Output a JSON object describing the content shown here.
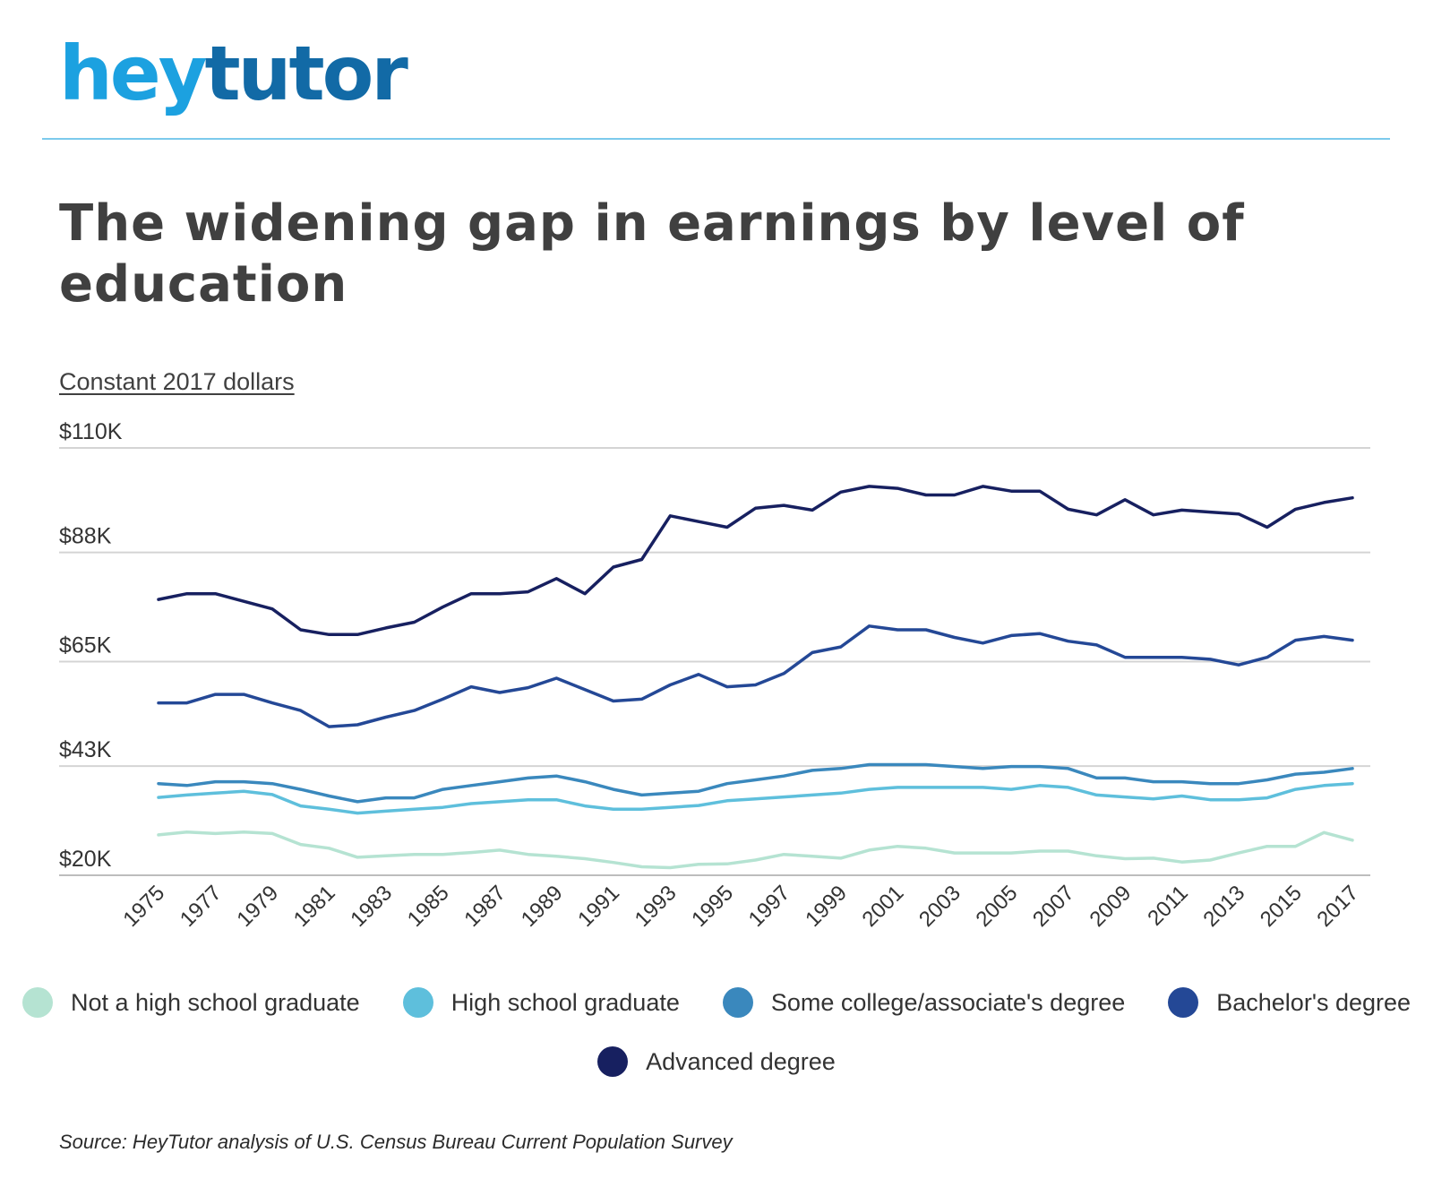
{
  "brand": {
    "part1": "hey",
    "part2": "tutor"
  },
  "colors": {
    "logo_primary": "#1ca1e0",
    "logo_secondary": "#126aa6",
    "divider": "#7ccaec",
    "gridline": "#d4d4d4"
  },
  "source": "Source: HeyTutor analysis of U.S. Census Bureau Current Population Survey",
  "chart_data": {
    "type": "line",
    "title": "The widening gap in earnings by level of education",
    "subtitle": "Constant 2017 dollars",
    "xlabel": "",
    "ylabel": "",
    "ylim": [
      20000,
      110000
    ],
    "yticks": [
      {
        "value": 20000,
        "label": "$20K"
      },
      {
        "value": 43000,
        "label": "$43K"
      },
      {
        "value": 65000,
        "label": "$65K"
      },
      {
        "value": 88000,
        "label": "$88K"
      },
      {
        "value": 110000,
        "label": "$110K"
      }
    ],
    "x": [
      1975,
      1976,
      1977,
      1978,
      1979,
      1980,
      1981,
      1982,
      1983,
      1984,
      1985,
      1986,
      1987,
      1988,
      1989,
      1990,
      1991,
      1992,
      1993,
      1994,
      1995,
      1996,
      1997,
      1998,
      1999,
      2000,
      2001,
      2002,
      2003,
      2004,
      2005,
      2006,
      2007,
      2008,
      2009,
      2010,
      2011,
      2012,
      2013,
      2014,
      2015,
      2016,
      2017
    ],
    "x_tick_labels": [
      "1975",
      "1977",
      "1979",
      "1981",
      "1983",
      "1985",
      "1987",
      "1989",
      "1991",
      "1993",
      "1995",
      "1997",
      "1999",
      "2001",
      "2003",
      "2005",
      "2007",
      "2009",
      "2011",
      "2013",
      "2015",
      "2017"
    ],
    "grid": true,
    "legend_position": "bottom",
    "series": [
      {
        "name": "Not a high school graduate",
        "color": "#b5e3d2",
        "values": [
          28500,
          29100,
          28800,
          29100,
          28800,
          26500,
          25700,
          23800,
          24100,
          24400,
          24400,
          24800,
          25300,
          24400,
          24000,
          23500,
          22700,
          21800,
          21600,
          22300,
          22400,
          23200,
          24400,
          24000,
          23600,
          25300,
          26100,
          25700,
          24700,
          24700,
          24700,
          25100,
          25100,
          24100,
          23500,
          23600,
          22800,
          23200,
          24700,
          26100,
          26100,
          29000,
          27400
        ]
      },
      {
        "name": "High school graduate",
        "color": "#5ebfdc",
        "values": [
          36400,
          36900,
          37300,
          37700,
          37000,
          34600,
          33900,
          33100,
          33500,
          33900,
          34300,
          35100,
          35500,
          35900,
          35900,
          34600,
          33900,
          33900,
          34300,
          34700,
          35700,
          36100,
          36500,
          36900,
          37300,
          38100,
          38500,
          38500,
          38500,
          38500,
          38100,
          38900,
          38500,
          36900,
          36500,
          36100,
          36700,
          35900,
          35900,
          36300,
          38100,
          38900,
          39300
        ]
      },
      {
        "name": "Some college/associate's degree",
        "color": "#3a88bd",
        "values": [
          39300,
          38900,
          39700,
          39700,
          39300,
          38100,
          36700,
          35500,
          36300,
          36300,
          38100,
          38900,
          39700,
          40500,
          40900,
          39700,
          38100,
          36900,
          37300,
          37700,
          39300,
          40100,
          40900,
          42100,
          42500,
          43300,
          43300,
          43300,
          42900,
          42500,
          42900,
          42900,
          42500,
          40500,
          40500,
          39700,
          39700,
          39300,
          39300,
          40100,
          41300,
          41700,
          42500
        ]
      },
      {
        "name": "Bachelor's degree",
        "color": "#244896",
        "values": [
          56300,
          56300,
          58100,
          58100,
          56300,
          54700,
          51300,
          51700,
          53300,
          54700,
          57100,
          59700,
          58500,
          59500,
          61500,
          59100,
          56700,
          57100,
          60100,
          62300,
          59700,
          60100,
          62500,
          66900,
          68100,
          72500,
          71700,
          71700,
          70100,
          68900,
          70500,
          70900,
          69300,
          68500,
          65900,
          65900,
          65900,
          65500,
          64300,
          65900,
          69500,
          70300,
          69500
        ]
      },
      {
        "name": "Advanced degree",
        "color": "#172060",
        "values": [
          78100,
          79300,
          79300,
          77700,
          76100,
          71700,
          70700,
          70700,
          72100,
          73300,
          76500,
          79300,
          79300,
          79700,
          82500,
          79300,
          84900,
          86500,
          95700,
          94500,
          93300,
          97300,
          97900,
          96900,
          100700,
          101900,
          101500,
          100100,
          100100,
          101900,
          100900,
          100900,
          97100,
          95900,
          99100,
          95900,
          96900,
          96500,
          96100,
          93300,
          97100,
          98500,
          99500
        ]
      }
    ]
  }
}
